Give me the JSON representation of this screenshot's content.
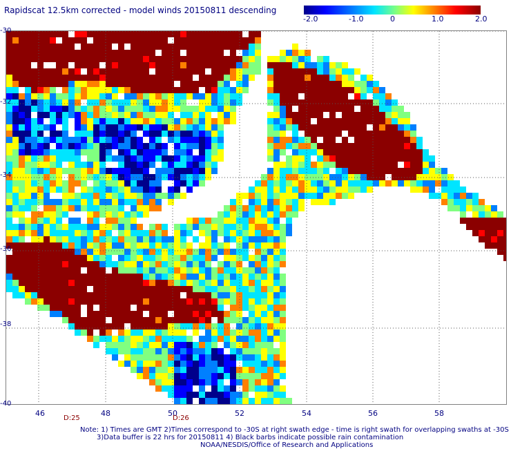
{
  "title": "Rapidscat 12.5km corrected - model winds 20150811 descending",
  "colorbar": {
    "labels": [
      "-2.0",
      "-1.0",
      "0",
      "1.0",
      "2.0"
    ],
    "colors": [
      "#00008b",
      "#0000ff",
      "#0080ff",
      "#00e5ff",
      "#80ff80",
      "#ffff00",
      "#ff8000",
      "#ff0000",
      "#8b0000"
    ]
  },
  "axes": {
    "lat_labels": [
      "-30",
      "-32",
      "-34",
      "-36",
      "-38",
      "-40"
    ],
    "lon_labels": [
      "46",
      "48",
      "50",
      "52",
      "54",
      "56",
      "58"
    ]
  },
  "times": [
    "D:25",
    "D:26"
  ],
  "notes": [
    "Note: 1) Times are GMT 2)Times correspond to -30S at right swath edge - time is right swath for overlapping swaths at -30S",
    "3)Data buffer is 22 hrs for 20150811 4) Black barbs indicate possible rain contamination",
    "NOAA/NESDIS/Office of Research and Applications"
  ]
}
